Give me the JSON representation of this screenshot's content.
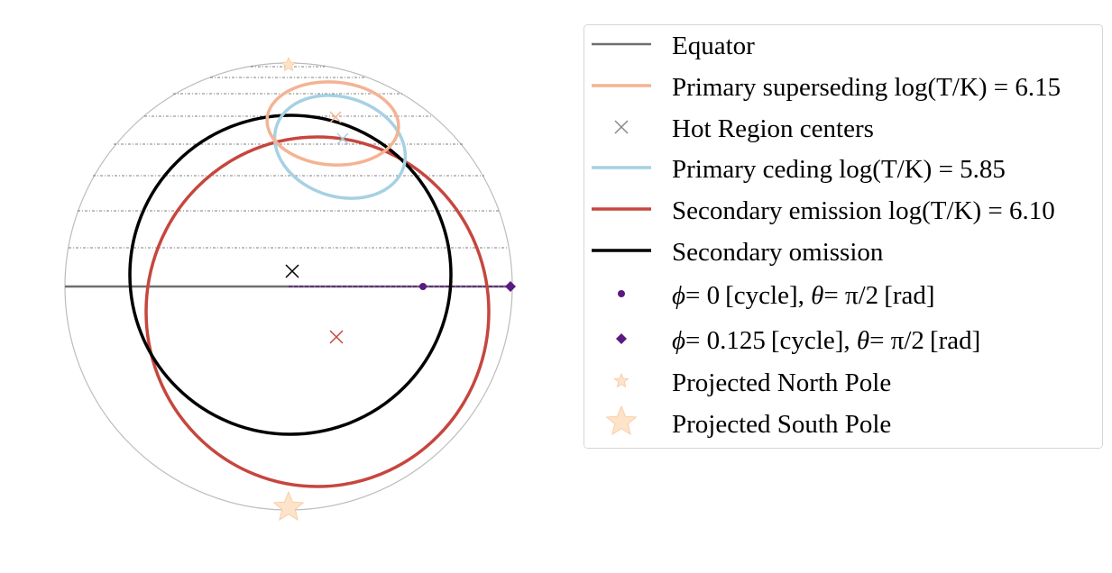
{
  "legend": {
    "equator": "Equator",
    "primary_superseding": "Primary superseding log(T/K) = 6.15",
    "hot_region_centers": "Hot Region centers",
    "primary_ceding": "Primary ceding log(T/K) = 5.85",
    "secondary_emission": "Secondary emission log(T/K) = 6.10",
    "secondary_omission": "Secondary omission",
    "phase0_prefix": "ϕ",
    "phase0_value": "= 0",
    "phase0_unit": "[cycle], ",
    "phase0_theta": "θ",
    "phase0_theta_value": "= π/2",
    "phase0_theta_unit": "[rad]",
    "phase1_prefix": "ϕ",
    "phase1_value": "= 0.125",
    "phase1_unit": "[cycle], ",
    "phase1_theta": "θ",
    "phase1_theta_value": "= π/2",
    "phase1_theta_unit": "[rad]",
    "north_pole": "Projected North Pole",
    "south_pole": "Projected South Pole"
  },
  "colors": {
    "equator": "#6e6e6e",
    "primary_superseding": "#f4b393",
    "primary_ceding": "#a6d1e3",
    "secondary_emission": "#c6463e",
    "secondary_omission": "#000000",
    "phase_markers": "#5b1a82",
    "poles": "#fde3c8",
    "star_outline": "#f7c8a0",
    "outline": "#bcbcbc"
  }
}
